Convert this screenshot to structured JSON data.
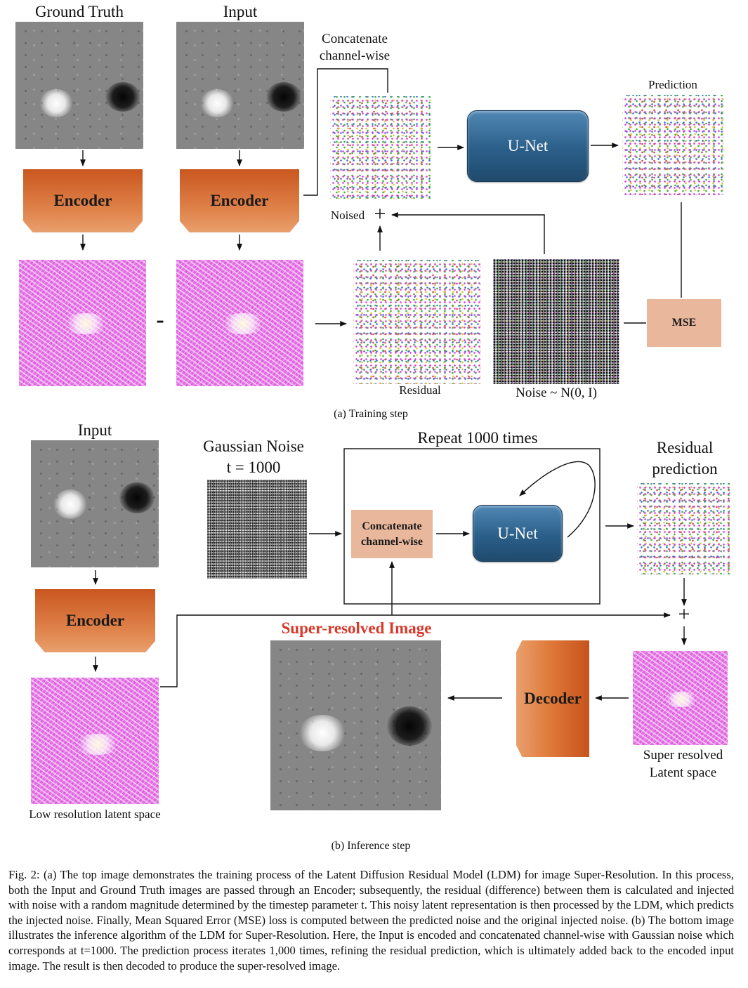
{
  "training": {
    "ground_truth_label": "Ground Truth",
    "input_label": "Input",
    "encoder_label": "Encoder",
    "concat_label_line1": "Concatenate",
    "concat_label_line2": "channel-wise",
    "unet_label": "U-Net",
    "prediction_label": "Prediction",
    "noised_label": "Noised",
    "plus_sign": "+",
    "minus_sign": "-",
    "residual_label": "Residual",
    "noise_label": "Noise ~ N(0, I)",
    "mse_label": "MSE",
    "subcaption": "(a) Training step"
  },
  "inference": {
    "input_label": "Input",
    "gaussian_noise_line1": "Gaussian Noise",
    "gaussian_noise_line2": "t = 1000",
    "repeat_label": "Repeat 1000 times",
    "concat_label_line1": "Concatenate",
    "concat_label_line2": "channel-wise",
    "unet_label": "U-Net",
    "residual_prediction_line1": "Residual",
    "residual_prediction_line2": "prediction",
    "encoder_label": "Encoder",
    "plus_sign": "+",
    "super_resolved_title": "Super-resolved Image",
    "decoder_label": "Decoder",
    "sr_latent_line1": "Super resolved",
    "sr_latent_line2": "Latent space",
    "lr_latent_label": "Low resolution latent space",
    "subcaption": "(b) Inference step"
  },
  "colors": {
    "super_resolved_title": "#d63a2a",
    "encoder": "#d9692f",
    "unet": "#2b5f89",
    "peach_box": "#e9b79c",
    "latent": "#e36be4"
  },
  "caption": "Fig. 2: (a) The top image demonstrates the training process of the Latent Diffusion Residual Model (LDM) for image Super-Resolution. In this process, both the Input and Ground Truth images are passed through an Encoder; subsequently, the residual (difference) between them is calculated and injected with noise with a random magnitude determined by the timestep parameter t. This noisy latent representation is then processed by the LDM, which predicts the injected noise. Finally, Mean Squared Error (MSE) loss is computed between the predicted noise and the original injected noise. (b) The bottom image illustrates the inference algorithm of the LDM for Super-Resolution. Here, the Input is encoded and concatenated channel-wise with Gaussian noise which corresponds at t=1000. The prediction process iterates 1,000 times, refining the residual prediction, which is ultimately added back to the encoded input image. The result is then decoded to produce the super-resolved image."
}
